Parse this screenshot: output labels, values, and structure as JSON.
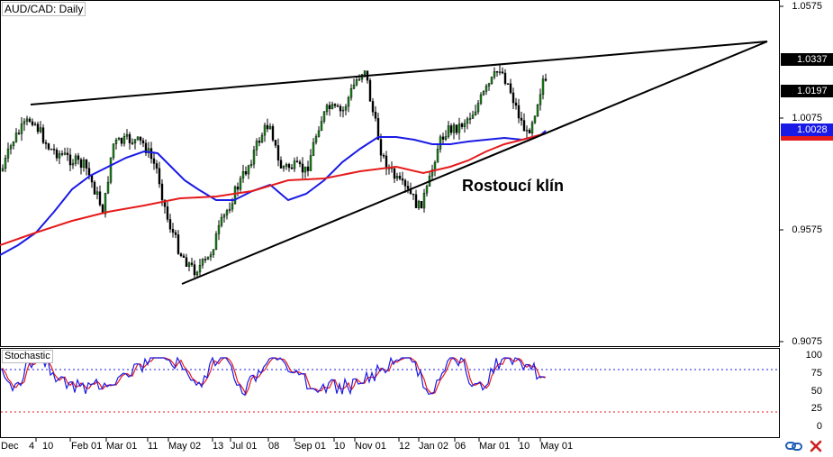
{
  "header": {
    "symbol_title": "AUD/CAD: Daily"
  },
  "price_axis": {
    "labels": [
      "1.0575",
      "1.0075",
      "0.9575",
      "0.9075"
    ]
  },
  "price_tags": [
    {
      "text": "1.0337",
      "bg": "#000000",
      "fg": "#ffffff"
    },
    {
      "text": "1.0197",
      "bg": "#000000",
      "fg": "#ffffff"
    },
    {
      "text": "1.0028",
      "bg": "#1a1ae6",
      "fg": "#ffffff"
    }
  ],
  "annotation": {
    "text": "Rostoucí klín"
  },
  "stochastic": {
    "label": "Stochastic",
    "levels": [
      "100",
      "75",
      "50",
      "25",
      "0"
    ]
  },
  "time_axis": {
    "labels": [
      "Dec",
      "4",
      "10",
      "Feb 01",
      "Mar 01",
      "11",
      "May 02",
      "13",
      "Jul 01",
      "08",
      "Sep 01",
      "10",
      "Nov 01",
      "12",
      "Jan 02",
      "06",
      "Mar 01",
      "10",
      "May 01"
    ]
  },
  "colors": {
    "ma_fast": "#1a1ae6",
    "ma_slow": "#e61a1a",
    "bull": "#1a8a1a",
    "bear": "#000000",
    "trendline": "#000000"
  },
  "icons": {
    "chart_icon": "link-chain-icon",
    "close_icon": "close-x-icon"
  }
}
